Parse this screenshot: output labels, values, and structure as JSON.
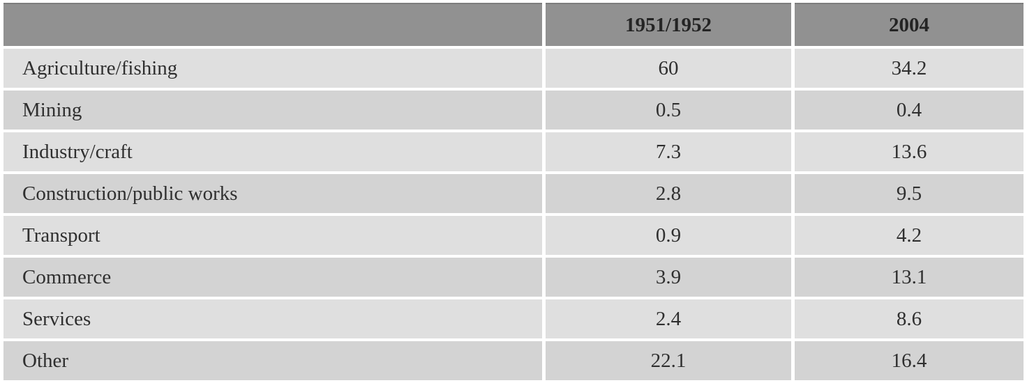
{
  "chart_data": {
    "type": "table",
    "title": "",
    "columns": [
      "",
      "1951/1952",
      "2004"
    ],
    "categories": [
      "Agriculture/fishing",
      "Mining",
      "Industry/craft",
      "Construction/public works",
      "Transport",
      "Commerce",
      "Services",
      "Other"
    ],
    "series": [
      {
        "name": "1951/1952",
        "values": [
          60,
          0.5,
          7.3,
          2.8,
          0.9,
          3.9,
          2.4,
          22.1
        ]
      },
      {
        "name": "2004",
        "values": [
          34.2,
          0.4,
          13.6,
          9.5,
          4.2,
          13.1,
          8.6,
          16.4
        ]
      }
    ],
    "layout_hints": {
      "header_row_shaded": true,
      "alternating_row_shading": true,
      "first_column_left_aligned": true,
      "value_columns_centered": true
    }
  },
  "colors": {
    "header_bg": "#919191",
    "header_border": "#7e7e7e",
    "row_light": "#dfdfdf",
    "row_dark": "#d3d3d3",
    "text": "#2f2f2f",
    "header_text": "#242424",
    "page_bg": "#ffffff"
  }
}
